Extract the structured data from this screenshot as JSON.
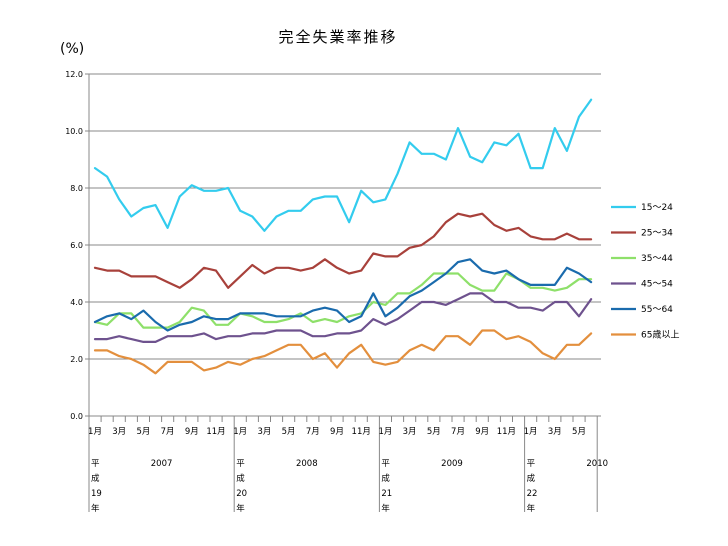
{
  "chart_data": {
    "type": "line",
    "title": "完全失業率推移",
    "ylabel": "(%)",
    "xlabel": "",
    "ylim": [
      0,
      12
    ],
    "yticks": [
      "0.0",
      "2.0",
      "4.0",
      "6.0",
      "8.0",
      "10.0",
      "12.0"
    ],
    "grid": true,
    "legend_position": "right",
    "x_month_labels": [
      "1月",
      "3月",
      "5月",
      "7月",
      "9月",
      "11月",
      "1月",
      "3月",
      "5月",
      "7月",
      "9月",
      "11月",
      "1月",
      "3月",
      "5月",
      "7月",
      "9月",
      "11月",
      "1月",
      "3月",
      "5月"
    ],
    "eras": [
      {
        "era": [
          "平",
          "成",
          "19",
          "年"
        ],
        "year": "2007"
      },
      {
        "era": [
          "平",
          "成",
          "20",
          "年"
        ],
        "year": "2008"
      },
      {
        "era": [
          "平",
          "成",
          "21",
          "年"
        ],
        "year": "2009"
      },
      {
        "era": [
          "平",
          "成",
          "22",
          "年"
        ],
        "year": "2010"
      }
    ],
    "x_count": 42,
    "series": [
      {
        "name": "15～24",
        "color": "#33CCEE",
        "values": [
          8.7,
          8.4,
          7.6,
          7.0,
          7.3,
          7.4,
          6.6,
          7.7,
          8.1,
          7.9,
          7.9,
          8.0,
          7.2,
          7.0,
          6.5,
          7.0,
          7.2,
          7.2,
          7.6,
          7.7,
          7.7,
          6.8,
          7.9,
          7.5,
          7.6,
          8.5,
          9.6,
          9.2,
          9.2,
          9.0,
          10.1,
          9.1,
          8.9,
          9.6,
          9.5,
          9.9,
          8.7,
          8.7,
          10.1,
          9.3,
          10.5,
          11.1
        ]
      },
      {
        "name": "25～34",
        "color": "#A8413B",
        "values": [
          5.2,
          5.1,
          5.1,
          4.9,
          4.9,
          4.9,
          4.7,
          4.5,
          4.8,
          5.2,
          5.1,
          4.5,
          4.9,
          5.3,
          5.0,
          5.2,
          5.2,
          5.1,
          5.2,
          5.5,
          5.2,
          5.0,
          5.1,
          5.7,
          5.6,
          5.6,
          5.9,
          6.0,
          6.3,
          6.8,
          7.1,
          7.0,
          7.1,
          6.7,
          6.5,
          6.6,
          6.3,
          6.2,
          6.2,
          6.4,
          6.2,
          6.2
        ]
      },
      {
        "name": "35～44",
        "color": "#8EE06A",
        "values": [
          3.3,
          3.2,
          3.6,
          3.6,
          3.1,
          3.1,
          3.1,
          3.3,
          3.8,
          3.7,
          3.2,
          3.2,
          3.6,
          3.5,
          3.3,
          3.3,
          3.4,
          3.6,
          3.3,
          3.4,
          3.3,
          3.5,
          3.6,
          4.0,
          3.9,
          4.3,
          4.3,
          4.6,
          5.0,
          5.0,
          5.0,
          4.6,
          4.4,
          4.4,
          5.0,
          4.8,
          4.5,
          4.5,
          4.4,
          4.5,
          4.8,
          4.8
        ]
      },
      {
        "name": "45～54",
        "color": "#6E528E",
        "values": [
          2.7,
          2.7,
          2.8,
          2.7,
          2.6,
          2.6,
          2.8,
          2.8,
          2.8,
          2.9,
          2.7,
          2.8,
          2.8,
          2.9,
          2.9,
          3.0,
          3.0,
          3.0,
          2.8,
          2.8,
          2.9,
          2.9,
          3.0,
          3.4,
          3.2,
          3.4,
          3.7,
          4.0,
          4.0,
          3.9,
          4.1,
          4.3,
          4.3,
          4.0,
          4.0,
          3.8,
          3.8,
          3.7,
          4.0,
          4.0,
          3.5,
          4.1
        ]
      },
      {
        "name": "55～64",
        "color": "#1A6BAD",
        "values": [
          3.3,
          3.5,
          3.6,
          3.4,
          3.7,
          3.3,
          3.0,
          3.2,
          3.3,
          3.5,
          3.4,
          3.4,
          3.6,
          3.6,
          3.6,
          3.5,
          3.5,
          3.5,
          3.7,
          3.8,
          3.7,
          3.3,
          3.5,
          4.3,
          3.5,
          3.8,
          4.2,
          4.4,
          4.7,
          5.0,
          5.4,
          5.5,
          5.1,
          5.0,
          5.1,
          4.8,
          4.6,
          4.6,
          4.6,
          5.2,
          5.0,
          4.7
        ]
      },
      {
        "name": "65歳以上",
        "color": "#E38F3D",
        "values": [
          2.3,
          2.3,
          2.1,
          2.0,
          1.8,
          1.5,
          1.9,
          1.9,
          1.9,
          1.6,
          1.7,
          1.9,
          1.8,
          2.0,
          2.1,
          2.3,
          2.5,
          2.5,
          2.0,
          2.2,
          1.7,
          2.2,
          2.5,
          1.9,
          1.8,
          1.9,
          2.3,
          2.5,
          2.3,
          2.8,
          2.8,
          2.5,
          3.0,
          3.0,
          2.7,
          2.8,
          2.6,
          2.2,
          2.0,
          2.5,
          2.5,
          2.9
        ]
      }
    ]
  }
}
